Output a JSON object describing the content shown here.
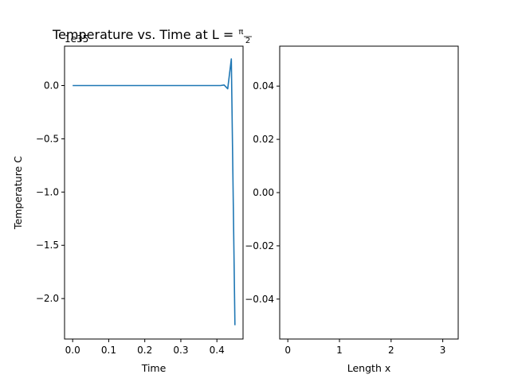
{
  "chart_data": [
    {
      "type": "line",
      "title": "Temperature vs. Time at L = ",
      "title_math": {
        "numerator": "π",
        "denominator": "2"
      },
      "xlabel": "Time",
      "ylabel": "Temperature C",
      "y_offset_label": "1e35",
      "xlim": [
        -0.0225,
        0.4725
      ],
      "ylim": [
        -2.38,
        0.37
      ],
      "x_ticks": [
        0.0,
        0.1,
        0.2,
        0.3,
        0.4
      ],
      "x_tick_labels": [
        "0.0",
        "0.1",
        "0.2",
        "0.3",
        "0.4"
      ],
      "y_ticks": [
        0.0,
        -0.5,
        -1.0,
        -1.5,
        -2.0
      ],
      "y_tick_labels": [
        "0.0",
        "−0.5",
        "−1.0",
        "−1.5",
        "−2.0"
      ],
      "grid": false,
      "color": "#1f77b4",
      "series": [
        {
          "x": [
            0.0,
            0.41,
            0.42,
            0.43,
            0.44,
            0.45
          ],
          "y": [
            0.0,
            0.0,
            0.005,
            -0.03,
            0.25,
            -2.25
          ]
        }
      ]
    },
    {
      "type": "line",
      "title": "",
      "xlabel": "Length x",
      "ylabel": "",
      "xlim": [
        -0.157,
        3.299
      ],
      "ylim": [
        -0.055,
        0.055
      ],
      "x_ticks": [
        0,
        1,
        2,
        3
      ],
      "x_tick_labels": [
        "0",
        "1",
        "2",
        "3"
      ],
      "y_ticks": [
        0.04,
        0.02,
        0.0,
        -0.02,
        -0.04
      ],
      "y_tick_labels": [
        "0.04",
        "0.02",
        "0.00",
        "−0.02",
        "−0.04"
      ],
      "grid": false,
      "series": []
    }
  ]
}
